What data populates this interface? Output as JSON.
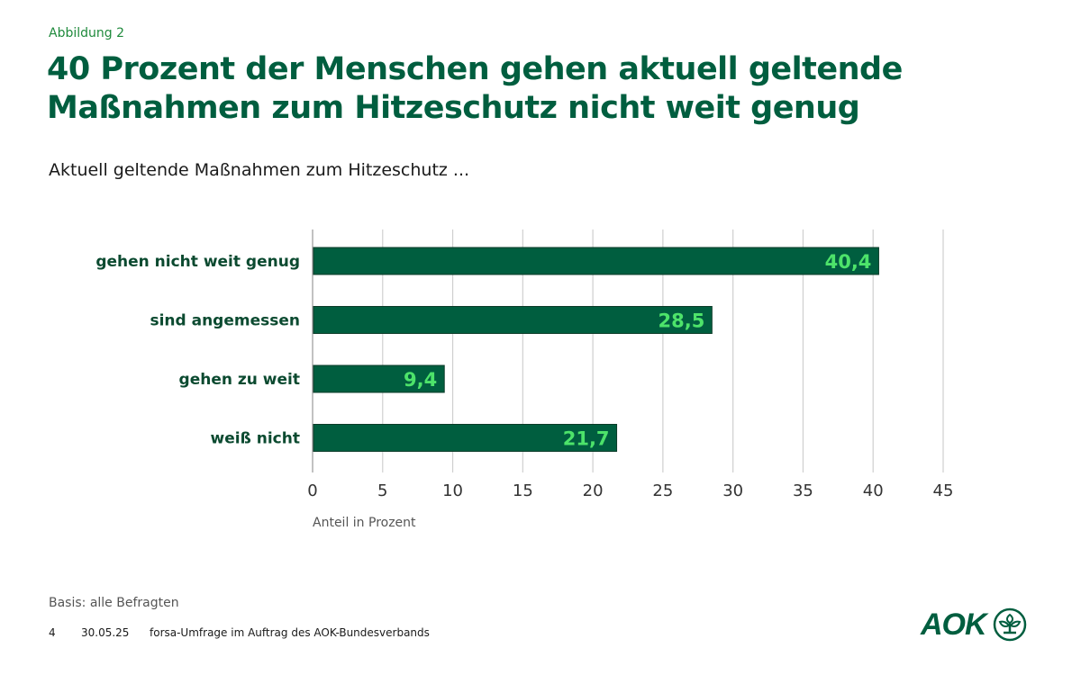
{
  "header": {
    "figure_label": "Abbildung 2",
    "title_line1": "40 Prozent der Menschen gehen aktuell geltende",
    "title_line2": "Maßnahmen zum Hitzeschutz nicht weit genug",
    "subtitle": "Aktuell geltende Maßnahmen zum Hitzeschutz ..."
  },
  "colors": {
    "bar": "#005e3f",
    "value_label": "#4de36a",
    "title": "#005e3f",
    "grid": "#cfcfcf"
  },
  "chart_data": {
    "type": "bar",
    "orientation": "horizontal",
    "categories": [
      "gehen nicht weit genug",
      "sind angemessen",
      "gehen zu weit",
      "weiß nicht"
    ],
    "values": [
      40.4,
      28.5,
      9.4,
      21.7
    ],
    "value_labels": [
      "40,4",
      "28,5",
      "9,4",
      "21,7"
    ],
    "xlabel": "Anteil in Prozent",
    "ylabel": "",
    "xlim": [
      0,
      45
    ],
    "xticks": [
      0,
      5,
      10,
      15,
      20,
      25,
      30,
      35,
      40,
      45
    ],
    "xtick_labels": [
      "0",
      "5",
      "10",
      "15",
      "20",
      "25",
      "30",
      "35",
      "40",
      "45"
    ],
    "grid": "vertical",
    "legend": "none"
  },
  "footer": {
    "basis": "Basis: alle Befragten",
    "page_number": "4",
    "date": "30.05.25",
    "source": "forsa-Umfrage im Auftrag des AOK-Bundesverbands"
  },
  "logo": {
    "text": "AOK",
    "icon": "tree-icon"
  }
}
